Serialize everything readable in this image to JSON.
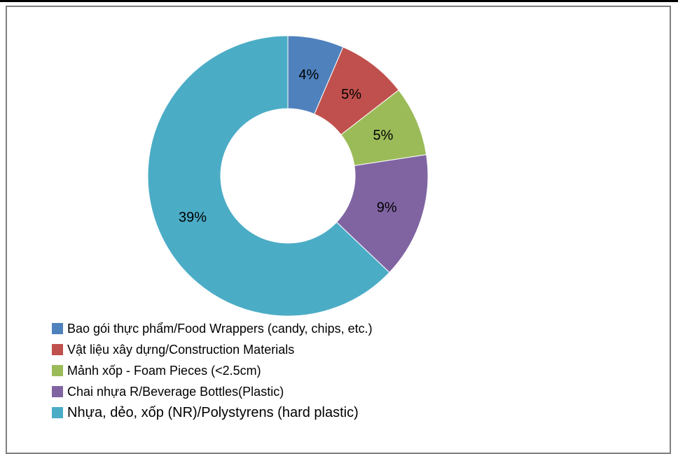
{
  "chart_data": {
    "type": "pie",
    "donut": true,
    "title": "",
    "total_display_note": "",
    "series": [
      {
        "name": "Bao gói thực phẩm/Food Wrappers (candy, chips, etc.)",
        "value": 4,
        "label": "4%",
        "color": "#4F81BD"
      },
      {
        "name": "Vật liệu xây dựng/Construction Materials",
        "value": 5,
        "label": "5%",
        "color": "#C0504D"
      },
      {
        "name": "Mảnh xốp - Foam Pieces (<2.5cm)",
        "value": 5,
        "label": "5%",
        "color": "#9BBB59"
      },
      {
        "name": "Chai nhựa R/Beverage  Bottles(Plastic)",
        "value": 9,
        "label": "9%",
        "color": "#8064A2"
      },
      {
        "name": "Nhựa, dẻo, xốp (NR)/Polystyrens (hard plastic)",
        "value": 39,
        "label": "39%",
        "color": "#4BACC6"
      }
    ],
    "legend_position": "bottom-left"
  }
}
